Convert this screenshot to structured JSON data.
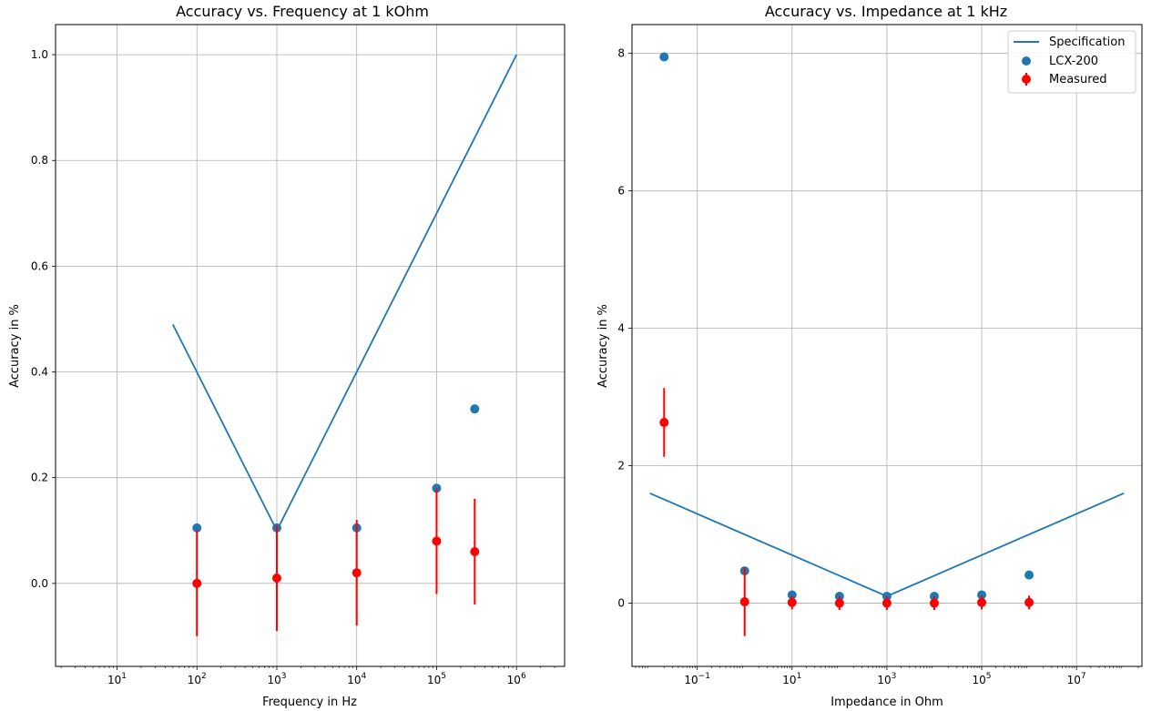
{
  "colors": {
    "spec": "#1f77b4",
    "lcx": "#1f77b4",
    "measured": "#ff0000",
    "grid": "#b0b0b0",
    "axes": "#000000"
  },
  "chart_data": [
    {
      "type": "line",
      "title": "Accuracy vs. Frequency at 1 kOhm",
      "xlabel": "Frequency in Hz",
      "ylabel": "Accuracy in %",
      "xscale": "log",
      "xlim": [
        1.7,
        4000000
      ],
      "ylim": [
        -0.157,
        1.057
      ],
      "xticks": [
        {
          "value": 10,
          "base": "10",
          "exp": "1"
        },
        {
          "value": 100,
          "base": "10",
          "exp": "2"
        },
        {
          "value": 1000,
          "base": "10",
          "exp": "3"
        },
        {
          "value": 10000,
          "base": "10",
          "exp": "4"
        },
        {
          "value": 100000,
          "base": "10",
          "exp": "5"
        },
        {
          "value": 1000000,
          "base": "10",
          "exp": "6"
        }
      ],
      "yticks": [
        {
          "value": 0.0,
          "label": "0.0"
        },
        {
          "value": 0.2,
          "label": "0.2"
        },
        {
          "value": 0.4,
          "label": "0.4"
        },
        {
          "value": 0.6,
          "label": "0.6"
        },
        {
          "value": 0.8,
          "label": "0.8"
        },
        {
          "value": 1.0,
          "label": "1.0"
        }
      ],
      "grid": true,
      "series": [
        {
          "name": "Specification",
          "kind": "line",
          "x": [
            50,
            1000,
            1000000
          ],
          "y": [
            0.49,
            0.1,
            1.0
          ]
        },
        {
          "name": "LCX-200",
          "kind": "scatter",
          "x": [
            100,
            1000,
            10000,
            100000,
            300000
          ],
          "y": [
            0.105,
            0.105,
            0.105,
            0.18,
            0.33
          ]
        },
        {
          "name": "Measured",
          "kind": "errorbar",
          "x": [
            100,
            1000,
            10000,
            100000,
            300000
          ],
          "y": [
            0.0,
            0.01,
            0.02,
            0.08,
            0.06
          ],
          "yerr": [
            0.1,
            0.1,
            0.1,
            0.1,
            0.1
          ]
        }
      ]
    },
    {
      "type": "line",
      "title": "Accuracy vs. Impedance at 1 kHz",
      "xlabel": "Impedance in Ohm",
      "ylabel": "Accuracy in %",
      "xscale": "log",
      "xlim": [
        0.0042,
        240000000
      ],
      "ylim": [
        -0.92,
        8.42
      ],
      "xticks": [
        {
          "value": 0.1,
          "base": "10",
          "exp": "−1"
        },
        {
          "value": 10,
          "base": "10",
          "exp": "1"
        },
        {
          "value": 1000,
          "base": "10",
          "exp": "3"
        },
        {
          "value": 100000,
          "base": "10",
          "exp": "5"
        },
        {
          "value": 10000000,
          "base": "10",
          "exp": "7"
        }
      ],
      "yticks": [
        {
          "value": 0,
          "label": "0"
        },
        {
          "value": 2,
          "label": "2"
        },
        {
          "value": 4,
          "label": "4"
        },
        {
          "value": 6,
          "label": "6"
        },
        {
          "value": 8,
          "label": "8"
        }
      ],
      "grid": true,
      "legend": "top-right",
      "series": [
        {
          "name": "Specification",
          "kind": "line",
          "x": [
            0.01,
            1000,
            100000000
          ],
          "y": [
            1.6,
            0.1,
            1.6
          ]
        },
        {
          "name": "LCX-200",
          "kind": "scatter",
          "x": [
            0.02,
            1,
            10,
            100,
            1000,
            10000,
            100000,
            1000000
          ],
          "y": [
            7.95,
            0.47,
            0.12,
            0.1,
            0.1,
            0.1,
            0.12,
            0.41
          ]
        },
        {
          "name": "Measured",
          "kind": "errorbar",
          "x": [
            0.02,
            1,
            10,
            100,
            1000,
            10000,
            100000,
            1000000
          ],
          "y": [
            2.63,
            0.02,
            0.01,
            0.0,
            0.0,
            0.0,
            0.01,
            0.01
          ],
          "yerr": [
            0.5,
            0.5,
            0.1,
            0.1,
            0.1,
            0.1,
            0.1,
            0.1
          ]
        }
      ]
    }
  ]
}
